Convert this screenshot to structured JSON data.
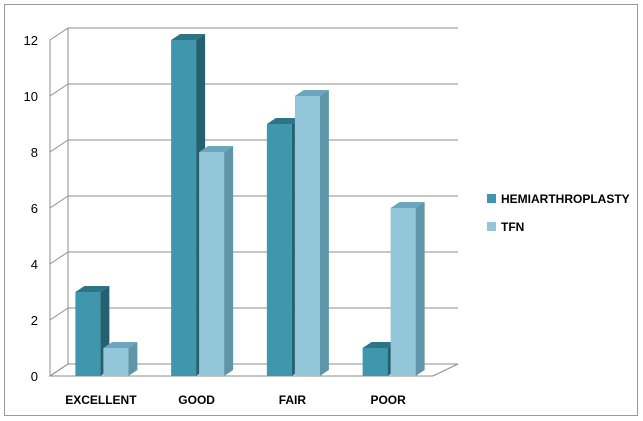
{
  "chart_data": {
    "type": "bar",
    "categories": [
      "EXCELLENT",
      "GOOD",
      "FAIR",
      "POOR"
    ],
    "series": [
      {
        "name": "HEMIARTHROPLASTY",
        "values": [
          3,
          12,
          9,
          1
        ]
      },
      {
        "name": "TFN",
        "values": [
          1,
          8,
          10,
          6
        ]
      }
    ],
    "ylim": [
      0,
      12
    ],
    "yticks": [
      0,
      2,
      4,
      6,
      8,
      10,
      12
    ],
    "grid": true,
    "legend_position": "right",
    "colors": {
      "series0_front": "#3f97ad",
      "series0_top": "#2e7386",
      "series0_side": "#24606f",
      "series1_front": "#93c6d9",
      "series1_top": "#6aa7bd",
      "series1_side": "#5f95a8",
      "grid": "#8c8c8c"
    }
  }
}
